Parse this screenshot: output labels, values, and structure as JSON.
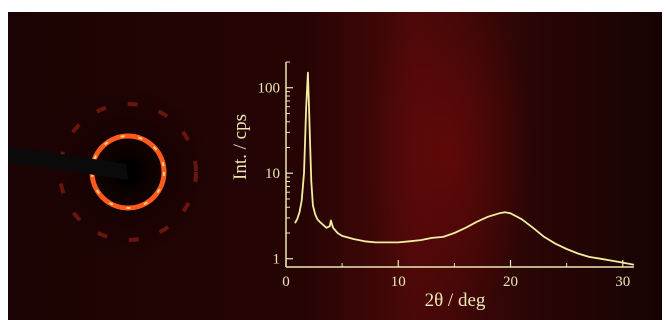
{
  "chart_data": {
    "type": "line",
    "title": "",
    "xlabel": "2θ / deg",
    "ylabel": "Int. / cps",
    "xlim": [
      0,
      31
    ],
    "ylim": [
      0.8,
      200
    ],
    "yscale": "log",
    "grid": false,
    "xticks": [
      0,
      10,
      20,
      30
    ],
    "yticks": [
      1,
      10,
      100
    ],
    "ytick_labels": [
      "1",
      "10",
      "100"
    ],
    "inset_image": "2D diffraction pattern with bright ring and beam stop",
    "series": [
      {
        "color": "#f2eda0",
        "x": [
          0.8,
          1.0,
          1.2,
          1.4,
          1.6,
          1.8,
          1.95,
          2.05,
          2.15,
          2.25,
          2.4,
          2.6,
          2.8,
          3.0,
          3.3,
          3.6,
          3.9,
          4.0,
          4.2,
          4.6,
          5,
          6,
          7,
          8,
          9,
          10,
          11,
          12,
          13,
          14,
          15,
          16,
          17,
          18,
          19,
          19.5,
          20,
          21,
          22,
          23,
          24,
          25,
          26,
          27,
          28,
          29,
          30,
          31
        ],
        "y": [
          2.6,
          2.9,
          3.5,
          4.8,
          10,
          60,
          150,
          60,
          22,
          8,
          4.2,
          3.3,
          2.9,
          2.7,
          2.5,
          2.3,
          2.4,
          2.8,
          2.3,
          2.0,
          1.85,
          1.7,
          1.6,
          1.55,
          1.55,
          1.55,
          1.6,
          1.65,
          1.75,
          1.8,
          2.0,
          2.3,
          2.7,
          3.1,
          3.4,
          3.5,
          3.4,
          2.9,
          2.3,
          1.8,
          1.5,
          1.3,
          1.15,
          1.05,
          1.0,
          0.95,
          0.9,
          0.85
        ]
      }
    ]
  }
}
